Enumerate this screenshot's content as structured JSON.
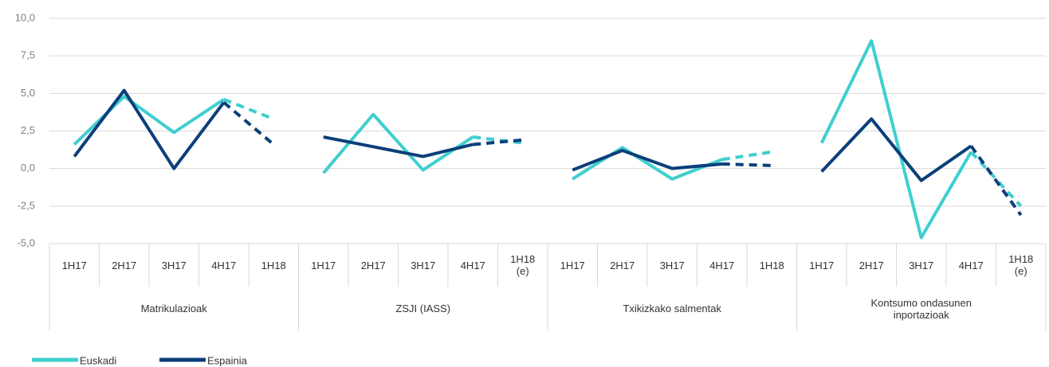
{
  "chart_data": {
    "type": "line",
    "categories": [
      "1H17",
      "2H17",
      "3H17",
      "4H17",
      "1H18",
      "1H17",
      "2H17",
      "3H17",
      "4H17",
      "1H18 (e)",
      "1H17",
      "2H17",
      "3H17",
      "4H17",
      "1H18",
      "1H17",
      "2H17",
      "3H17",
      "4H17",
      "1H18 (e)"
    ],
    "groups": [
      "Matrikulazioak",
      "ZSJI (IASS)",
      "Txikizkako salmentak",
      "Kontsumo ondasunen inportazioak"
    ],
    "series": [
      {
        "name": "Euskadi",
        "color": "#3fcfcf",
        "values": [
          1.6,
          4.8,
          2.4,
          4.6,
          3.3,
          -0.3,
          3.6,
          -0.1,
          2.1,
          1.7,
          -0.7,
          1.4,
          -0.7,
          0.6,
          1.1,
          1.7,
          8.5,
          -4.6,
          1.1,
          -2.5
        ]
      },
      {
        "name": "Espainia",
        "color": "#0c3f7a",
        "values": [
          0.8,
          5.2,
          0.0,
          4.4,
          1.6,
          2.1,
          1.45,
          0.8,
          1.6,
          1.9,
          -0.1,
          1.2,
          0.0,
          0.3,
          0.2,
          -0.2,
          3.3,
          -0.8,
          1.5,
          -3.1
        ]
      }
    ],
    "ylim": [
      -5,
      10
    ],
    "yticks": [
      {
        "value": -5,
        "label": "-5,0"
      },
      {
        "value": -2.5,
        "label": "-2,5"
      },
      {
        "value": 0,
        "label": "0,0"
      },
      {
        "value": 2.5,
        "label": "2,5"
      },
      {
        "value": 5,
        "label": "5,0"
      },
      {
        "value": 7.5,
        "label": "7,5"
      },
      {
        "value": 10,
        "label": "10,0"
      }
    ],
    "grid": true,
    "last_segment_dashed": true,
    "legend": "bottom-left"
  }
}
